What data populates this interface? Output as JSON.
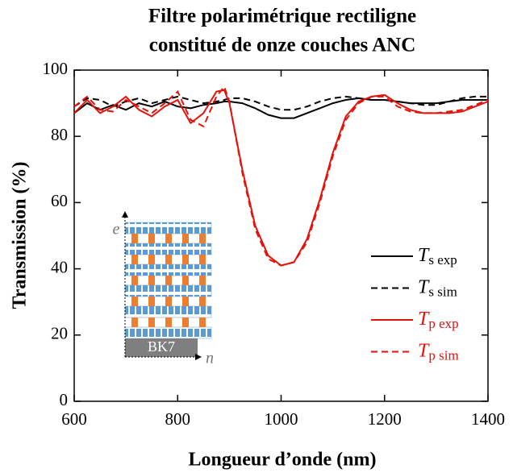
{
  "chart_data": {
    "type": "line",
    "title": [
      "Filtre polarimétrique rectiligne",
      "constitué de onze couches ANC"
    ],
    "xlabel": "Longueur d’onde (nm)",
    "ylabel": "Transmission (%)",
    "x": [
      600,
      625,
      650,
      675,
      700,
      725,
      750,
      775,
      800,
      825,
      850,
      875,
      890,
      900,
      925,
      950,
      975,
      1000,
      1025,
      1050,
      1075,
      1100,
      1125,
      1150,
      1175,
      1200,
      1225,
      1250,
      1275,
      1300,
      1325,
      1350,
      1375,
      1400
    ],
    "series": [
      {
        "name": "Ts exp",
        "color": "#000000",
        "dash": false,
        "values": [
          87,
          90,
          88,
          89.5,
          88,
          90,
          89,
          90.5,
          89,
          88.5,
          89.5,
          90,
          90.5,
          90.5,
          90,
          88.5,
          86.5,
          85.5,
          85.5,
          87,
          88.5,
          90,
          91,
          91.5,
          91,
          91,
          90.5,
          90,
          90,
          90,
          90.5,
          91,
          91,
          91
        ]
      },
      {
        "name": "Ts sim",
        "color": "#000000",
        "dash": true,
        "values": [
          89,
          91.5,
          91,
          89,
          90.5,
          91.5,
          90,
          91,
          92,
          91,
          90,
          90.5,
          91,
          91.5,
          91.5,
          90.5,
          89,
          88,
          88,
          89,
          90.5,
          91.5,
          92,
          91.5,
          91,
          91,
          90.5,
          90,
          89.5,
          89.5,
          90.5,
          91.5,
          92,
          92
        ]
      },
      {
        "name": "Tp exp",
        "color": "#e3120b",
        "dash": false,
        "values": [
          87,
          91,
          87,
          89,
          92,
          88,
          86,
          89,
          91,
          84,
          87,
          93.5,
          94,
          90,
          70,
          53,
          44,
          41,
          42,
          49,
          61,
          75,
          86,
          90.5,
          92,
          92.5,
          90,
          88,
          87,
          87,
          87,
          87.5,
          89,
          90.5
        ]
      },
      {
        "name": "Tp sim",
        "color": "#e3120b",
        "dash": true,
        "values": [
          89,
          92,
          88,
          87.5,
          91,
          89,
          87,
          90,
          93.5,
          85,
          83,
          92,
          95,
          90.5,
          69,
          52,
          43,
          41,
          42,
          48,
          60,
          74,
          85,
          90,
          92,
          92,
          89,
          87.5,
          87,
          87,
          87.5,
          88,
          89.5,
          91
        ]
      }
    ],
    "xlim": [
      600,
      1400
    ],
    "xticks": [
      600,
      800,
      1000,
      1200,
      1400
    ],
    "ylim": [
      0,
      100
    ],
    "yticks": [
      0,
      20,
      40,
      60,
      80,
      100
    ],
    "annotations": {
      "substrate": "BK7",
      "axis_vertical": "e",
      "axis_horizontal": "n"
    }
  }
}
